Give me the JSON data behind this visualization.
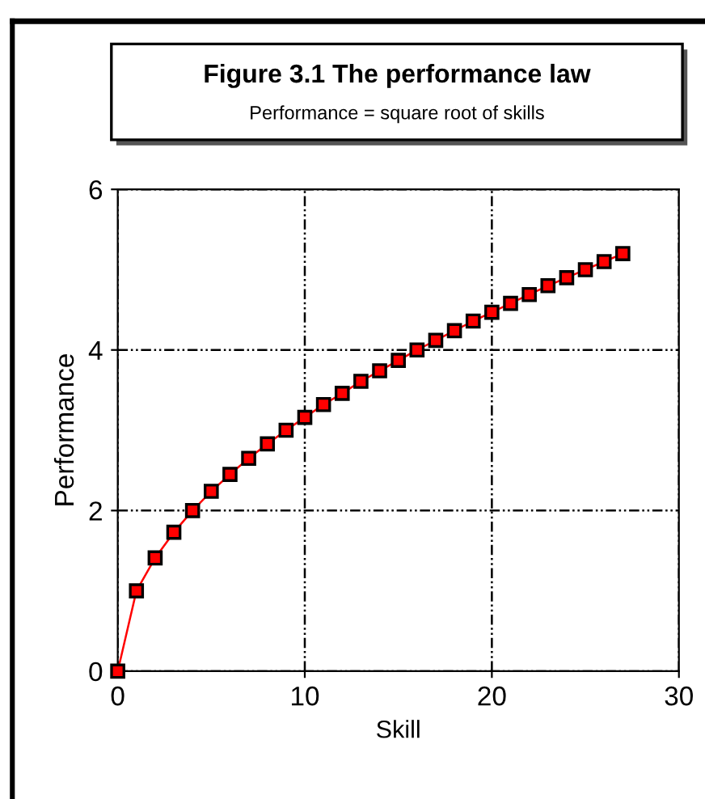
{
  "chart_data": {
    "type": "line",
    "title": "Figure 3.1 The performance law",
    "subtitle": "Performance = square root of skills",
    "xlabel": "Skill",
    "ylabel": "Performance",
    "x": [
      0,
      1,
      2,
      3,
      4,
      5,
      6,
      7,
      8,
      9,
      10,
      11,
      12,
      13,
      14,
      15,
      16,
      17,
      18,
      19,
      20,
      21,
      22,
      23,
      24,
      25,
      26,
      27
    ],
    "series": [
      {
        "color": "#ff0000",
        "values": [
          0,
          1,
          1.41,
          1.73,
          2,
          2.24,
          2.45,
          2.65,
          2.83,
          3,
          3.16,
          3.32,
          3.46,
          3.61,
          3.74,
          3.87,
          4,
          4.12,
          4.24,
          4.36,
          4.47,
          4.58,
          4.69,
          4.8,
          4.9,
          5,
          5.1,
          5.2
        ]
      }
    ],
    "xlim": [
      0,
      30
    ],
    "xticks": [
      0,
      10,
      20,
      30
    ],
    "ylim": [
      0,
      6
    ],
    "yticks": [
      0,
      2,
      4,
      6
    ],
    "grid": true,
    "marker": "square",
    "line_style": "solid"
  }
}
